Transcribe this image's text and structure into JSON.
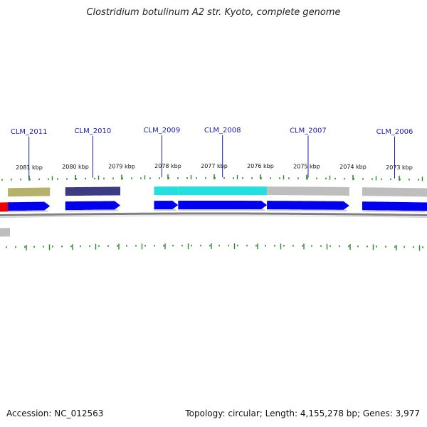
{
  "title": "Clostridium botulinum A2 str. Kyoto, complete genome",
  "footer": {
    "accession": "Accession: NC_012563",
    "summary": "Topology: circular; Length: 4,155,278 bp; Genes: 3,977"
  },
  "genes": [
    {
      "label": "CLM_2011",
      "start_kbp": 2081.46,
      "end_kbp": 2080.55,
      "feature_color": "#b5b06a",
      "cds_color": "#0000ee"
    },
    {
      "label": "CLM_2010",
      "start_kbp": 2080.22,
      "end_kbp": 2079.03,
      "feature_color": "#3c3c84",
      "cds_color": "#0000ee"
    },
    {
      "label": "CLM_2009",
      "start_kbp": 2078.3,
      "end_kbp": 2077.78,
      "feature_color": "#22e0e0",
      "cds_color": "#0000ee"
    },
    {
      "label": "CLM_2008",
      "start_kbp": 2077.78,
      "end_kbp": 2075.86,
      "feature_color": "#22e0e0",
      "cds_color": "#0000ee"
    },
    {
      "label": "CLM_2007",
      "start_kbp": 2075.86,
      "end_kbp": 2074.08,
      "feature_color": "#bebebe",
      "cds_color": "#0000ee"
    },
    {
      "label": "CLM_2006",
      "start_kbp": 2073.8,
      "end_kbp": 2072.4,
      "feature_color": "#bebebe",
      "cds_color": "#0000ee"
    }
  ],
  "kbp_labels": [
    "2081 kbp",
    "2080 kbp",
    "2079 kbp",
    "2078 kbp",
    "2077 kbp",
    "2076 kbp",
    "2075 kbp",
    "2074 kbp",
    "2073 kbp"
  ],
  "colors": {
    "tick": "#2a8a2a",
    "backbone": "#808080",
    "gene_label": "#1a1aa8",
    "leftmost_feature": "#ee0000"
  }
}
